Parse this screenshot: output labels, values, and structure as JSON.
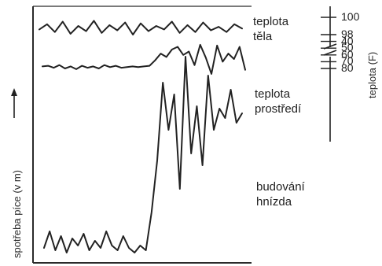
{
  "chart_data": {
    "type": "line",
    "xlabel": "",
    "ylabel_left": "spotřeba píce (v m)",
    "ylabel_right": "teplota (F)",
    "right_axis": {
      "ticks": [
        100,
        98,
        80,
        70,
        60,
        50,
        40
      ],
      "break_between": [
        98,
        80
      ]
    },
    "series": [
      {
        "name": "teplota těla",
        "label_lines": [
          "teplota",
          "těla"
        ],
        "values": [
          98.6,
          99.2,
          98.3,
          99.5,
          98.1,
          99.0,
          98.4,
          99.6,
          98.2,
          99.1,
          98.5,
          99.4,
          98.0,
          99.3,
          98.4,
          99.0,
          98.6,
          99.5,
          98.2,
          99.1,
          98.3,
          99.4,
          98.5,
          98.9,
          98.3,
          99.2,
          98.7
        ]
      },
      {
        "name": "teplota prostředí",
        "label_lines": [
          "teplota",
          "prostředí"
        ],
        "values": [
          77,
          76,
          79,
          75,
          80,
          77,
          81,
          76,
          79,
          77,
          80,
          75,
          78,
          76,
          79,
          78,
          77,
          78,
          77,
          76,
          68,
          58,
          63,
          52,
          48,
          60,
          55,
          75,
          45,
          64,
          88,
          46,
          70,
          58,
          66,
          48,
          82
        ]
      },
      {
        "name": "budování hnízda",
        "label_lines": [
          "budování",
          "hnízda"
        ],
        "values": [
          5,
          12,
          4,
          10,
          3,
          9,
          6,
          11,
          4,
          8,
          5,
          12,
          6,
          4,
          10,
          5,
          3,
          6,
          4,
          20,
          42,
          75,
          55,
          70,
          30,
          86,
          45,
          65,
          40,
          78,
          55,
          64,
          60,
          72,
          58,
          62
        ]
      }
    ]
  }
}
